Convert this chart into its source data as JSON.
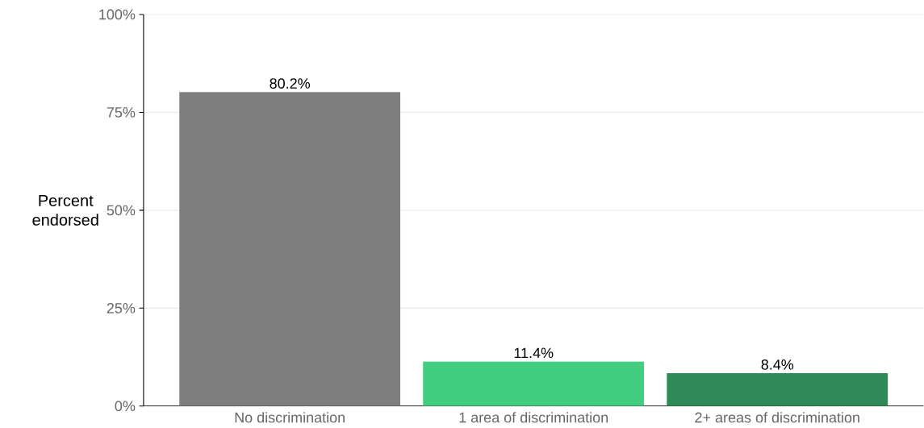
{
  "chart_data": {
    "type": "bar",
    "ylabel": "Percent endorsed",
    "categories": [
      "No discrimination",
      "1 area of discrimination",
      "2+ areas of discrimination"
    ],
    "values": [
      80.2,
      11.4,
      8.4
    ],
    "colors": [
      "#7f7f7f",
      "#43cd80",
      "#2e8b57"
    ],
    "value_labels": [
      "80.2%",
      "11.4%",
      "8.4%"
    ],
    "ylim": [
      0,
      100
    ],
    "yticks": [
      {
        "value": 0,
        "label": "0%"
      },
      {
        "value": 25,
        "label": "25%"
      },
      {
        "value": 50,
        "label": "50%"
      },
      {
        "value": 75,
        "label": "75%"
      },
      {
        "value": 100,
        "label": "100%"
      }
    ],
    "grid": "y"
  }
}
